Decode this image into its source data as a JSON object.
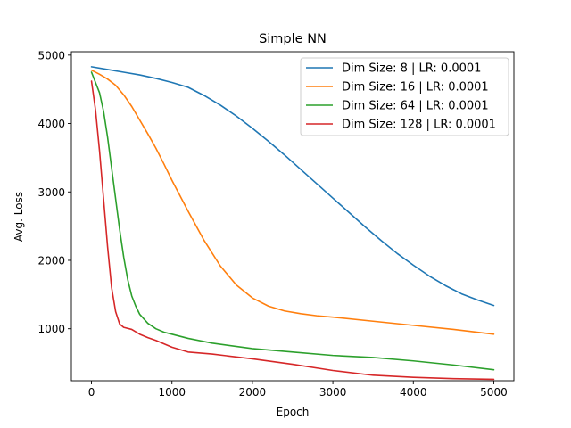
{
  "chart_data": {
    "type": "line",
    "title": "Simple NN",
    "xlabel": "Epoch",
    "ylabel": "Avg. Loss",
    "xlim": [
      -250,
      5250
    ],
    "ylim": [
      240,
      5050
    ],
    "xticks": [
      0,
      1000,
      2000,
      3000,
      4000,
      5000
    ],
    "yticks": [
      1000,
      2000,
      3000,
      4000,
      5000
    ],
    "grid": false,
    "legend_position": "top-right",
    "series": [
      {
        "name": "Dim Size: 8 | LR: 0.0001",
        "color": "#1f77b4",
        "x": [
          0,
          200,
          400,
          600,
          800,
          1000,
          1200,
          1400,
          1600,
          1800,
          2000,
          2200,
          2400,
          2600,
          2800,
          3000,
          3200,
          3400,
          3600,
          3800,
          4000,
          4200,
          4400,
          4600,
          4800,
          5000
        ],
        "y": [
          4830,
          4790,
          4750,
          4710,
          4660,
          4600,
          4530,
          4410,
          4270,
          4110,
          3930,
          3740,
          3540,
          3330,
          3120,
          2910,
          2700,
          2490,
          2290,
          2100,
          1930,
          1770,
          1630,
          1510,
          1420,
          1340
        ]
      },
      {
        "name": "Dim Size: 16 | LR: 0.0001",
        "color": "#ff7f0e",
        "x": [
          0,
          100,
          200,
          300,
          400,
          500,
          600,
          700,
          800,
          900,
          1000,
          1200,
          1400,
          1600,
          1800,
          2000,
          2200,
          2400,
          2600,
          2800,
          3000,
          3500,
          4000,
          4500,
          5000
        ],
        "y": [
          4780,
          4720,
          4650,
          4560,
          4420,
          4250,
          4050,
          3850,
          3640,
          3410,
          3170,
          2720,
          2290,
          1920,
          1640,
          1450,
          1330,
          1260,
          1220,
          1190,
          1170,
          1110,
          1050,
          990,
          920
        ]
      },
      {
        "name": "Dim Size: 64 | LR: 0.0001",
        "color": "#2ca02c",
        "x": [
          0,
          100,
          150,
          200,
          250,
          300,
          350,
          400,
          450,
          500,
          550,
          600,
          700,
          800,
          900,
          1000,
          1200,
          1500,
          2000,
          2500,
          3000,
          3500,
          4000,
          4500,
          5000
        ],
        "y": [
          4750,
          4450,
          4180,
          3800,
          3350,
          2900,
          2450,
          2050,
          1720,
          1480,
          1330,
          1210,
          1080,
          1000,
          950,
          920,
          860,
          790,
          710,
          660,
          610,
          580,
          530,
          470,
          400
        ]
      },
      {
        "name": "Dim Size: 128 | LR: 0.0001",
        "color": "#d62728",
        "x": [
          0,
          50,
          100,
          150,
          200,
          250,
          300,
          350,
          400,
          500,
          600,
          700,
          800,
          1000,
          1200,
          1500,
          2000,
          2500,
          3000,
          3500,
          4000,
          4500,
          5000
        ],
        "y": [
          4620,
          4200,
          3600,
          2900,
          2200,
          1600,
          1250,
          1070,
          1020,
          990,
          920,
          870,
          830,
          730,
          660,
          630,
          560,
          480,
          390,
          320,
          290,
          270,
          260
        ]
      }
    ]
  }
}
